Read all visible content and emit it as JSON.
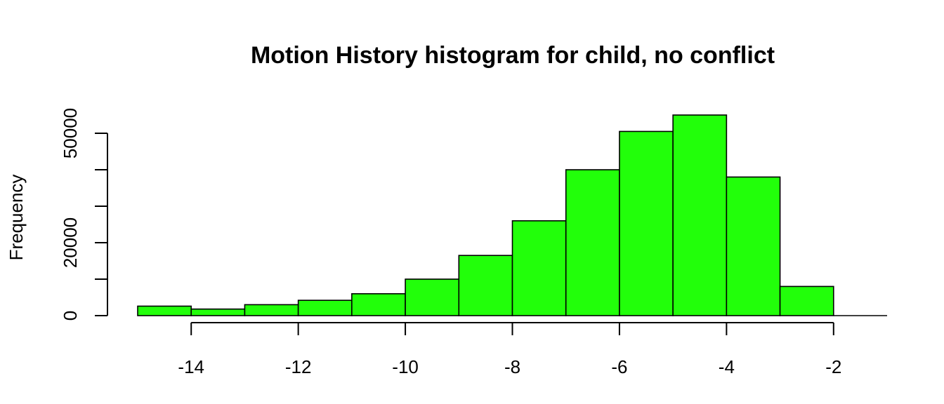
{
  "chart_data": {
    "type": "bar",
    "title": "Motion History histogram for child, no conflict",
    "xlabel": "",
    "ylabel": "Frequency",
    "bins": [
      {
        "x0": -15,
        "x1": -14,
        "count": 2600
      },
      {
        "x0": -14,
        "x1": -13,
        "count": 1800
      },
      {
        "x0": -13,
        "x1": -12,
        "count": 3000
      },
      {
        "x0": -12,
        "x1": -11,
        "count": 4200
      },
      {
        "x0": -11,
        "x1": -10,
        "count": 6000
      },
      {
        "x0": -10,
        "x1": -9,
        "count": 10000
      },
      {
        "x0": -9,
        "x1": -8,
        "count": 16500
      },
      {
        "x0": -8,
        "x1": -7,
        "count": 26000
      },
      {
        "x0": -7,
        "x1": -6,
        "count": 40000
      },
      {
        "x0": -6,
        "x1": -5,
        "count": 50500
      },
      {
        "x0": -5,
        "x1": -4,
        "count": 55000
      },
      {
        "x0": -4,
        "x1": -3,
        "count": 38000
      },
      {
        "x0": -3,
        "x1": -2,
        "count": 8000
      },
      {
        "x0": -2,
        "x1": -1,
        "count": 0
      }
    ],
    "x_ticks": [
      -14,
      -12,
      -10,
      -8,
      -6,
      -4,
      -2
    ],
    "x_tick_labels": [
      "-14",
      "-12",
      "-10",
      "-8",
      "-6",
      "-4",
      "-2"
    ],
    "y_ticks": [
      0,
      10000,
      20000,
      30000,
      40000,
      50000
    ],
    "y_tick_labels": [
      "0",
      "",
      "20000",
      "",
      "",
      "50000"
    ],
    "xlim": [
      -15,
      -1
    ],
    "ylim": [
      0,
      55000
    ],
    "bar_color": "#22ff0a",
    "grid": false,
    "legend": "none"
  }
}
